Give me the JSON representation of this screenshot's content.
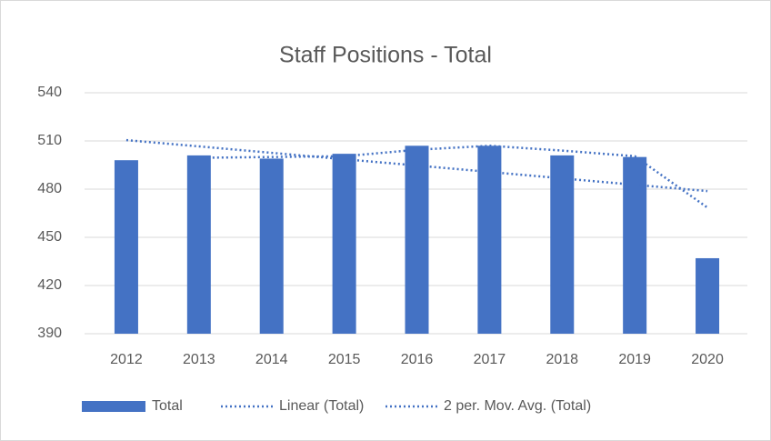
{
  "chart_data": {
    "type": "bar",
    "title": "Staff Positions - Total",
    "categories": [
      "2012",
      "2013",
      "2014",
      "2015",
      "2016",
      "2017",
      "2018",
      "2019",
      "2020"
    ],
    "series": [
      {
        "name": "Total",
        "color": "#4472c4",
        "values": [
          498,
          501,
          499,
          502,
          507,
          507,
          501,
          500,
          437
        ]
      },
      {
        "name": "Linear (Total)",
        "color": "#4472c4",
        "values": [
          510.5,
          506.6,
          502.6,
          498.6,
          494.7,
          490.7,
          486.7,
          482.7,
          478.8
        ]
      },
      {
        "name": "2 per. Mov. Avg. (Total)",
        "color": "#4472c4",
        "values": [
          null,
          499.5,
          500,
          500.5,
          504.5,
          507,
          504,
          500.5,
          468.5
        ]
      }
    ],
    "ylim": [
      390,
      540
    ],
    "yticks": [
      390,
      420,
      450,
      480,
      510,
      540
    ],
    "grid": true,
    "legend": "bottom"
  }
}
